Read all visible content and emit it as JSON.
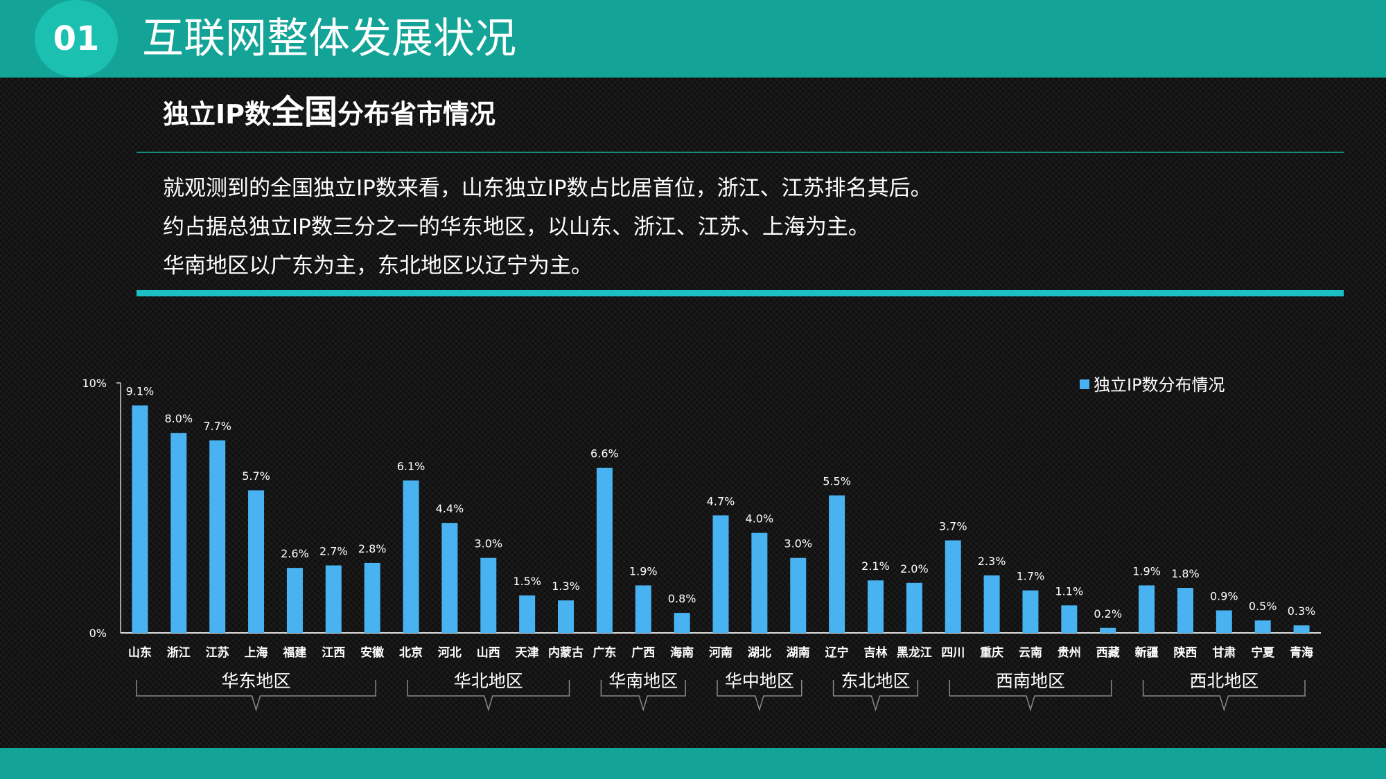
{
  "header": {
    "number": "01",
    "title": "互联网整体发展状况"
  },
  "section": {
    "title_part1": "独立IP数",
    "title_part2": "全国",
    "title_part3": "分布省市情况"
  },
  "summary_lines": [
    "就观测到的全国独立IP数来看，山东独立IP数占比居首位，浙江、江苏排名其后。",
    "约占据总独立IP数三分之一的华东地区，以山东、浙江、江苏、上海为主。",
    "华南地区以广东为主，东北地区以辽宁为主。"
  ],
  "colors": {
    "accent": "#14a497",
    "bar": "#49b3f2",
    "divider": "#1bbfc6"
  },
  "chart_data": {
    "type": "bar",
    "categories": [
      "山东",
      "浙江",
      "江苏",
      "上海",
      "福建",
      "江西",
      "安徽",
      "北京",
      "河北",
      "山西",
      "天津",
      "内蒙古",
      "广东",
      "广西",
      "海南",
      "河南",
      "湖北",
      "湖南",
      "辽宁",
      "吉林",
      "黑龙江",
      "四川",
      "重庆",
      "云南",
      "贵州",
      "西藏",
      "新疆",
      "陕西",
      "甘肃",
      "宁夏",
      "青海"
    ],
    "values": [
      9.1,
      8.0,
      7.7,
      5.7,
      2.6,
      2.7,
      2.8,
      6.1,
      4.4,
      3.0,
      1.5,
      1.3,
      6.6,
      1.9,
      0.8,
      4.7,
      4.0,
      3.0,
      5.5,
      2.1,
      2.0,
      3.7,
      2.3,
      1.7,
      1.1,
      0.2,
      1.9,
      1.8,
      0.9,
      0.5,
      0.3
    ],
    "value_labels": [
      "9.1%",
      "8.0%",
      "7.7%",
      "5.7%",
      "2.6%",
      "2.7%",
      "2.8%",
      "6.1%",
      "4.4%",
      "3.0%",
      "1.5%",
      "1.3%",
      "6.6%",
      "1.9%",
      "0.8%",
      "4.7%",
      "4.0%",
      "3.0%",
      "5.5%",
      "2.1%",
      "2.0%",
      "3.7%",
      "2.3%",
      "1.7%",
      "1.1%",
      "0.2%",
      "1.9%",
      "1.8%",
      "0.9%",
      "0.5%",
      "0.3%"
    ],
    "ylim": [
      0,
      10
    ],
    "y_ticks": [
      "0%",
      "10%"
    ],
    "series_name": "独立IP数分布情况",
    "legend_position": "top-right",
    "groups": [
      {
        "label": "华东地区",
        "first": 0,
        "last": 6
      },
      {
        "label": "华北地区",
        "first": 7,
        "last": 11
      },
      {
        "label": "华南地区",
        "first": 12,
        "last": 14
      },
      {
        "label": "华中地区",
        "first": 15,
        "last": 17
      },
      {
        "label": "东北地区",
        "first": 18,
        "last": 20
      },
      {
        "label": "西南地区",
        "first": 21,
        "last": 25
      },
      {
        "label": "西北地区",
        "first": 26,
        "last": 30
      }
    ]
  }
}
